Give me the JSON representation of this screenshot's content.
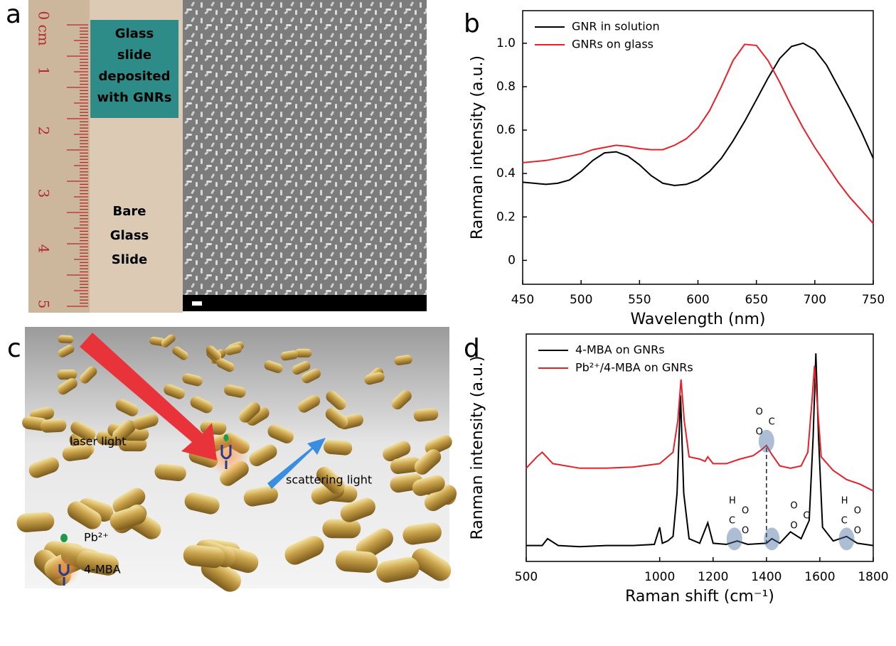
{
  "panels": {
    "a": {
      "label": "a",
      "ruler_labels": [
        "0 cm",
        "1",
        "2",
        "3",
        "4",
        "5"
      ],
      "glass_label": [
        "Glass",
        "slide",
        "deposited",
        "with GNRs"
      ],
      "bare_label": [
        "Bare",
        "Glass",
        "Slide"
      ]
    },
    "c": {
      "label": "c",
      "laser": "laser light",
      "scattering": "scattering light",
      "ion": "Pb²⁺",
      "molecule": "4-MBA"
    }
  },
  "chart_data": [
    {
      "type": "line",
      "label": "b",
      "x_label": "Wavelength (nm)",
      "y_label": "Ranman intensity (a.u.)",
      "xlim": [
        450,
        750
      ],
      "ylim": [
        -0.11,
        1.15
      ],
      "xticks": [
        450,
        500,
        550,
        600,
        650,
        700,
        750
      ],
      "yticks": [
        0,
        0.2,
        0.4,
        0.6,
        0.8,
        {
          "value": 1,
          "label": "1.0"
        }
      ],
      "x": [
        450,
        460,
        470,
        480,
        490,
        500,
        510,
        520,
        530,
        540,
        550,
        560,
        570,
        580,
        590,
        600,
        610,
        620,
        630,
        640,
        650,
        660,
        670,
        680,
        690,
        700,
        710,
        720,
        730,
        740,
        750
      ],
      "series": [
        {
          "name": "GNR in solution",
          "color": "#000000",
          "values": [
            0.36,
            0.355,
            0.35,
            0.355,
            0.37,
            0.41,
            0.46,
            0.495,
            0.5,
            0.48,
            0.44,
            0.39,
            0.355,
            0.345,
            0.35,
            0.37,
            0.41,
            0.47,
            0.55,
            0.64,
            0.74,
            0.84,
            0.93,
            0.985,
            1.0,
            0.97,
            0.9,
            0.8,
            0.7,
            0.59,
            0.47
          ]
        },
        {
          "name": "GNRs on glass",
          "color": "#e8202a",
          "values": [
            0.45,
            0.455,
            0.46,
            0.47,
            0.48,
            0.49,
            0.51,
            0.52,
            0.53,
            0.525,
            0.515,
            0.51,
            0.51,
            0.53,
            0.56,
            0.61,
            0.69,
            0.8,
            0.92,
            0.995,
            0.99,
            0.92,
            0.82,
            0.71,
            0.61,
            0.52,
            0.44,
            0.36,
            0.29,
            0.23,
            0.17
          ]
        }
      ]
    },
    {
      "type": "line",
      "label": "d",
      "x_label": "Raman shift (cm⁻¹)",
      "y_label": "Ranman intensity (a.u.)",
      "xlim": [
        500,
        1800
      ],
      "ylim": [
        0,
        100
      ],
      "xticks": [
        500,
        1000,
        1200,
        1400,
        1600,
        1800
      ],
      "structure_labels": [
        [
          "O",
          "C",
          "O"
        ],
        [
          "H",
          "O",
          "C",
          "O"
        ],
        [
          "O",
          "C",
          "O"
        ],
        [
          "H",
          "O",
          "C",
          "O"
        ]
      ],
      "series": [
        {
          "name": "4-MBA on GNRs",
          "color": "#000000",
          "x": [
            500,
            560,
            580,
            620,
            700,
            800,
            900,
            980,
            1000,
            1010,
            1030,
            1050,
            1065,
            1078,
            1090,
            1110,
            1150,
            1180,
            1200,
            1250,
            1290,
            1330,
            1400,
            1420,
            1450,
            1490,
            1530,
            1560,
            1575,
            1585,
            1595,
            1610,
            1650,
            1700,
            1740,
            1800
          ],
          "values": [
            7,
            7,
            10,
            7,
            6.5,
            7,
            7,
            7.5,
            15,
            8,
            9,
            11,
            30,
            73,
            30,
            10,
            8,
            17,
            8,
            7.5,
            9,
            7.5,
            8,
            10,
            8,
            13,
            10,
            18,
            55,
            91.5,
            55,
            15,
            9,
            11,
            8,
            7
          ]
        },
        {
          "name": "Pb²⁺/4-MBA on GNRs",
          "color": "#e8202a",
          "x": [
            500,
            540,
            560,
            600,
            700,
            800,
            900,
            1000,
            1050,
            1068,
            1080,
            1092,
            1110,
            1150,
            1170,
            1180,
            1200,
            1250,
            1300,
            1350,
            1380,
            1400,
            1420,
            1450,
            1490,
            1530,
            1555,
            1570,
            1580,
            1590,
            1605,
            1650,
            1700,
            1750,
            1800
          ],
          "values": [
            41,
            46,
            48,
            43,
            41,
            41,
            41.5,
            43,
            48,
            62,
            80,
            62,
            46,
            45,
            44,
            46,
            43,
            43,
            45,
            46.5,
            49,
            51,
            47,
            42,
            41,
            42,
            48,
            70,
            86,
            70,
            46,
            40,
            36,
            34,
            31
          ]
        }
      ]
    }
  ]
}
